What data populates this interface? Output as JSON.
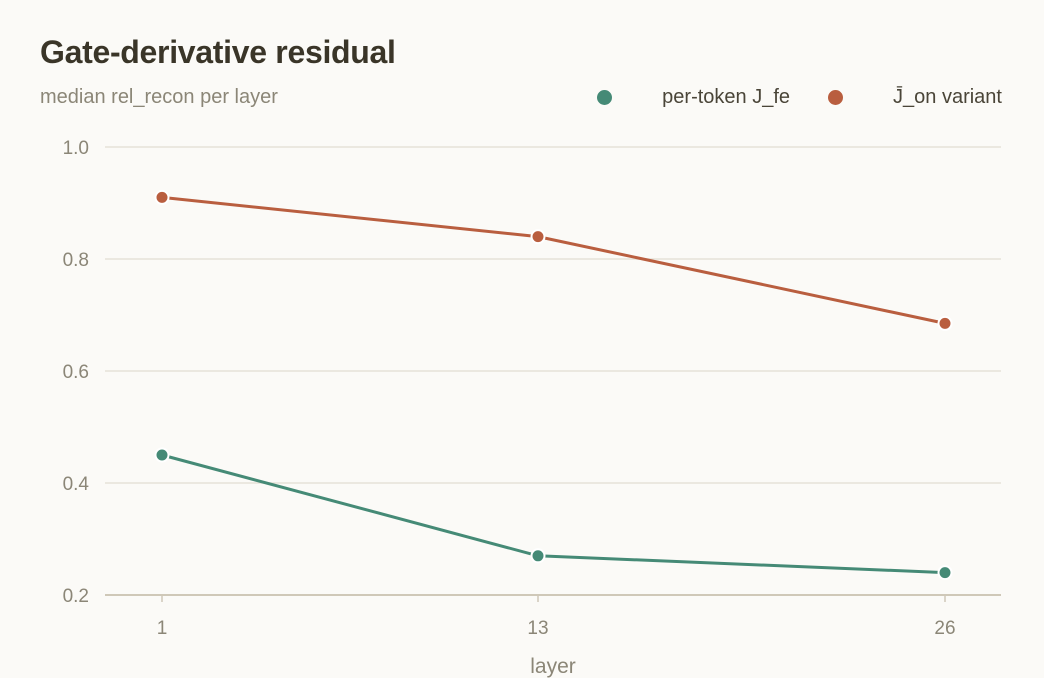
{
  "chart_data": {
    "type": "line",
    "title": "Gate-derivative residual",
    "subtitle": "median rel_recon per layer",
    "xlabel": "layer",
    "ylabel": "",
    "x": [
      1,
      13,
      26
    ],
    "x_tick_labels": [
      "1",
      "13",
      "26"
    ],
    "ylim": [
      0.2,
      1.0
    ],
    "y_ticks": [
      0.2,
      0.4,
      0.6,
      0.8,
      1.0
    ],
    "y_tick_labels": [
      "0.2",
      "0.4",
      "0.6",
      "0.8",
      "1.0"
    ],
    "grid": "horizontal",
    "legend_position": "top-right",
    "series": [
      {
        "name": "per-token J_fe",
        "values": [
          0.45,
          0.27,
          0.24
        ],
        "color": "#458a76"
      },
      {
        "name": "J̄_on variant",
        "values": [
          0.91,
          0.84,
          0.685
        ],
        "color": "#b95e3f"
      }
    ]
  }
}
